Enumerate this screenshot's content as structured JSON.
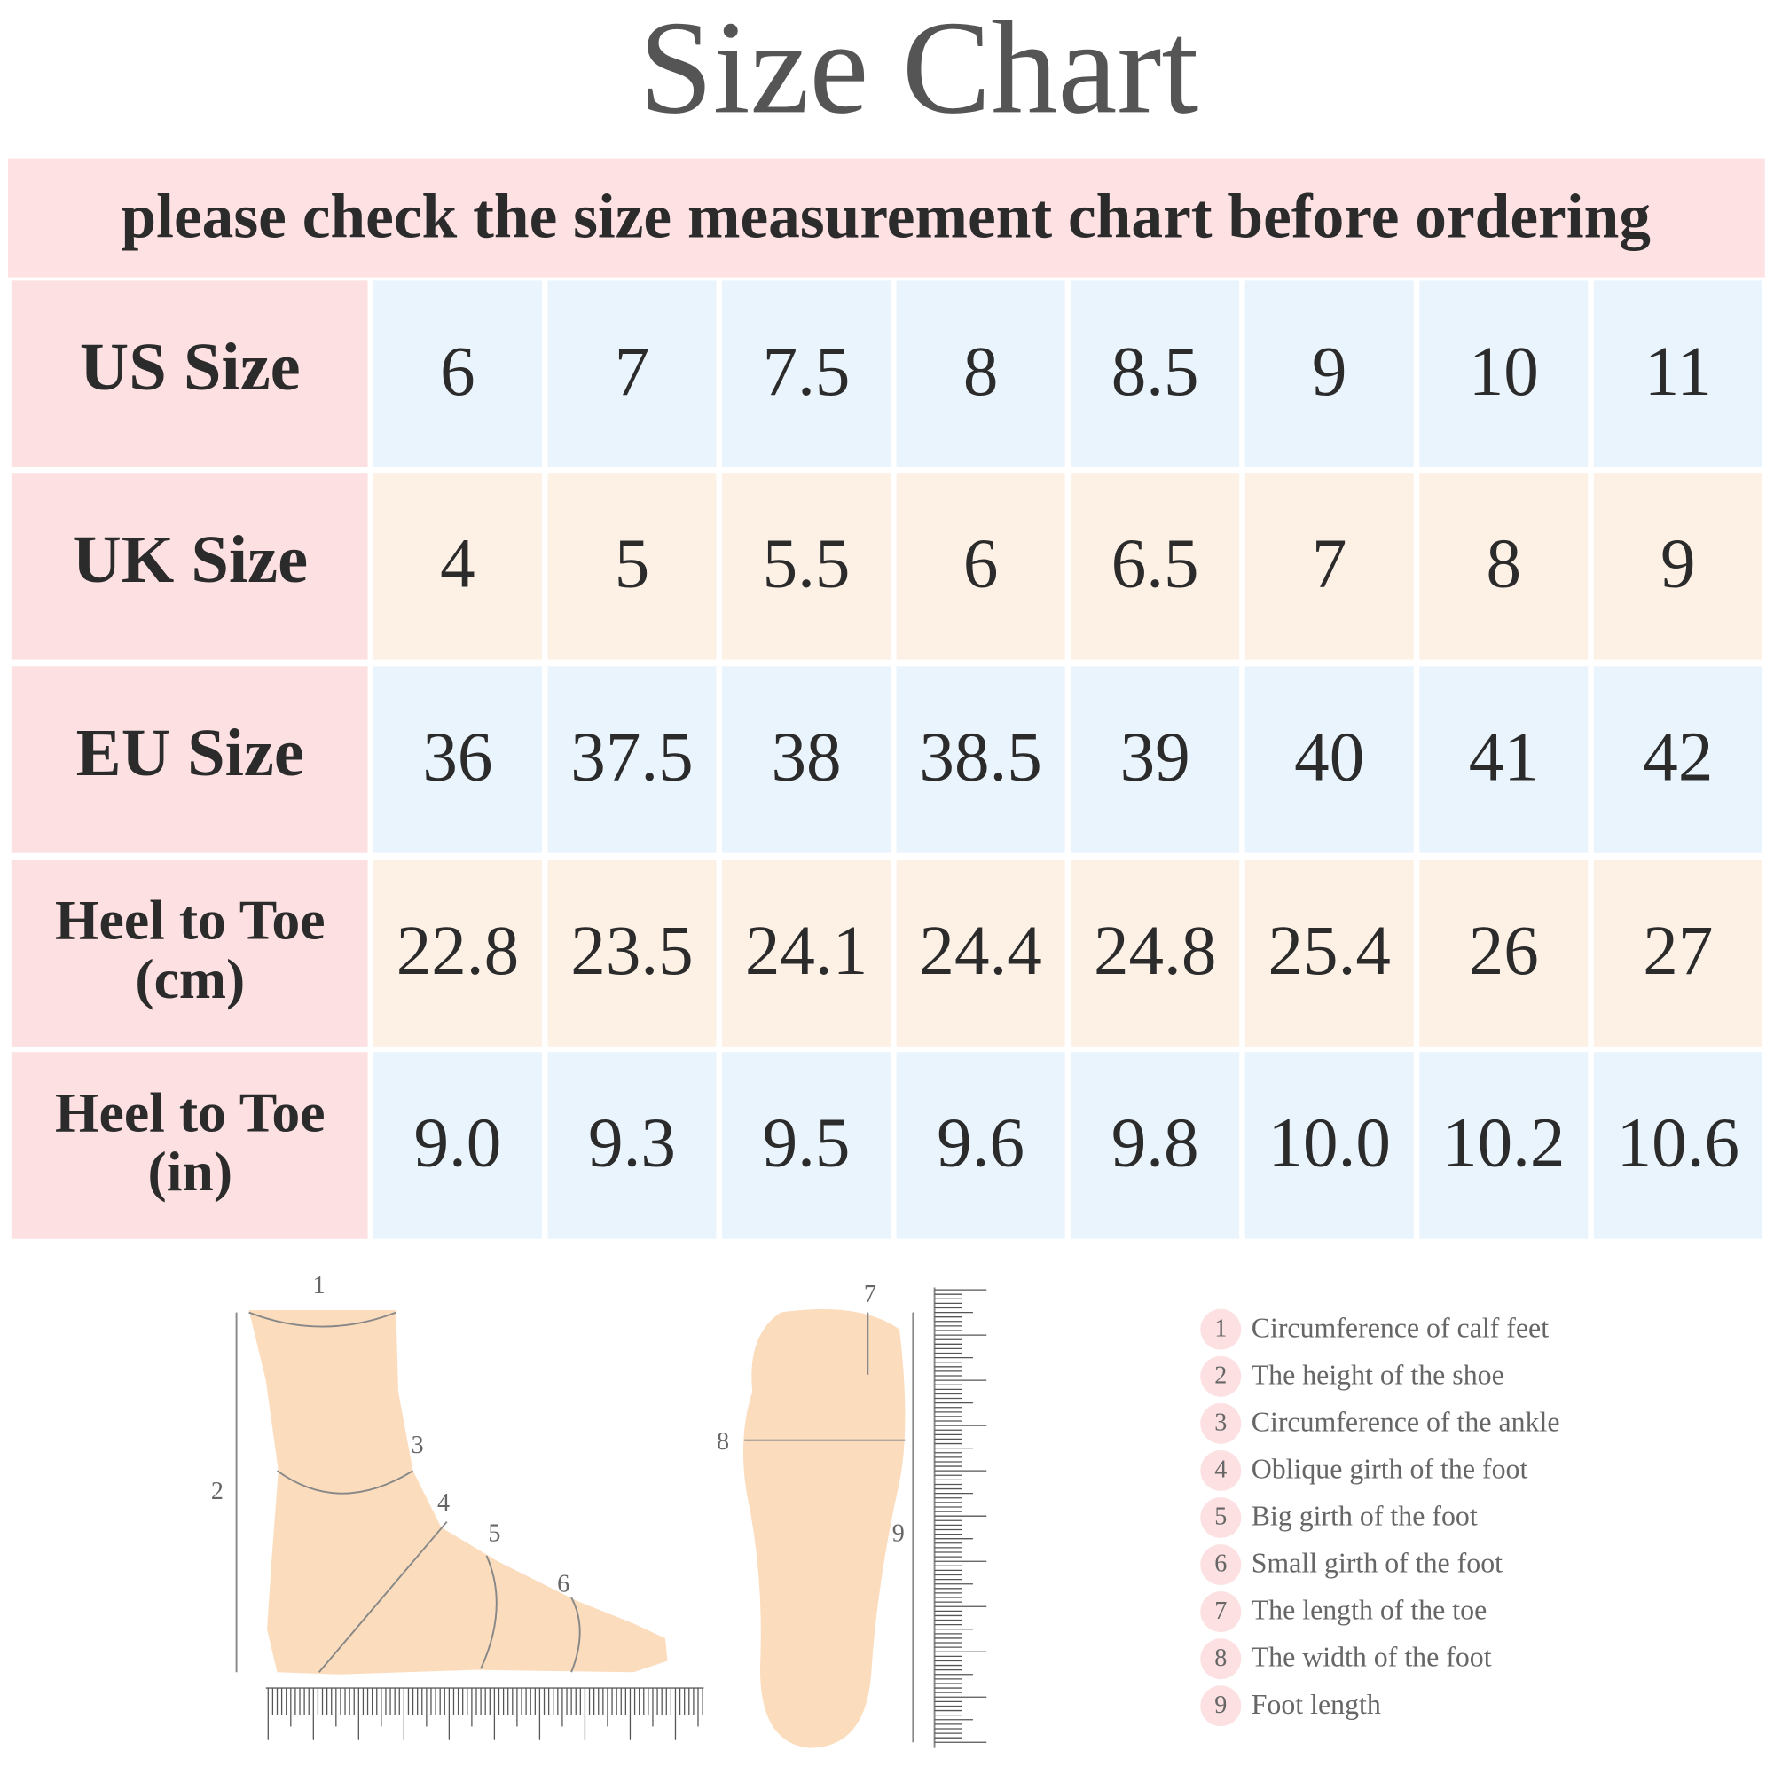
{
  "header": {
    "title": "Size  Chart",
    "subtitle": "please check the size measurement chart before ordering"
  },
  "table": {
    "rows": [
      {
        "label": [
          "US Size"
        ],
        "values": [
          "6",
          "7",
          "7.5",
          "8",
          "8.5",
          "9",
          "10",
          "11"
        ]
      },
      {
        "label": [
          "UK Size"
        ],
        "values": [
          "4",
          "5",
          "5.5",
          "6",
          "6.5",
          "7",
          "8",
          "9"
        ]
      },
      {
        "label": [
          "EU Size"
        ],
        "values": [
          "36",
          "37.5",
          "38",
          "38.5",
          "39",
          "40",
          "41",
          "42"
        ]
      },
      {
        "label": [
          "Heel to Toe",
          "(cm)"
        ],
        "values": [
          "22.8",
          "23.5",
          "24.1",
          "24.4",
          "24.8",
          "25.4",
          "26",
          "27"
        ]
      },
      {
        "label": [
          "Heel to Toe",
          "(in)"
        ],
        "values": [
          "9.0",
          "9.3",
          "9.5",
          "9.6",
          "9.8",
          "10.0",
          "10.2",
          "10.6"
        ]
      }
    ]
  },
  "legend": [
    {
      "number": "1",
      "text": "Circumference of calf feet"
    },
    {
      "number": "2",
      "text": "The height of the shoe"
    },
    {
      "number": "3",
      "text": "Circumference of the ankle"
    },
    {
      "number": "4",
      "text": "Oblique girth of the foot"
    },
    {
      "number": "5",
      "text": "Big girth of the foot"
    },
    {
      "number": "6",
      "text": "Small girth of the foot"
    },
    {
      "number": "7",
      "text": "The length of the toe"
    },
    {
      "number": "8",
      "text": "The width of the foot"
    },
    {
      "number": "9",
      "text": "Foot length"
    }
  ]
}
